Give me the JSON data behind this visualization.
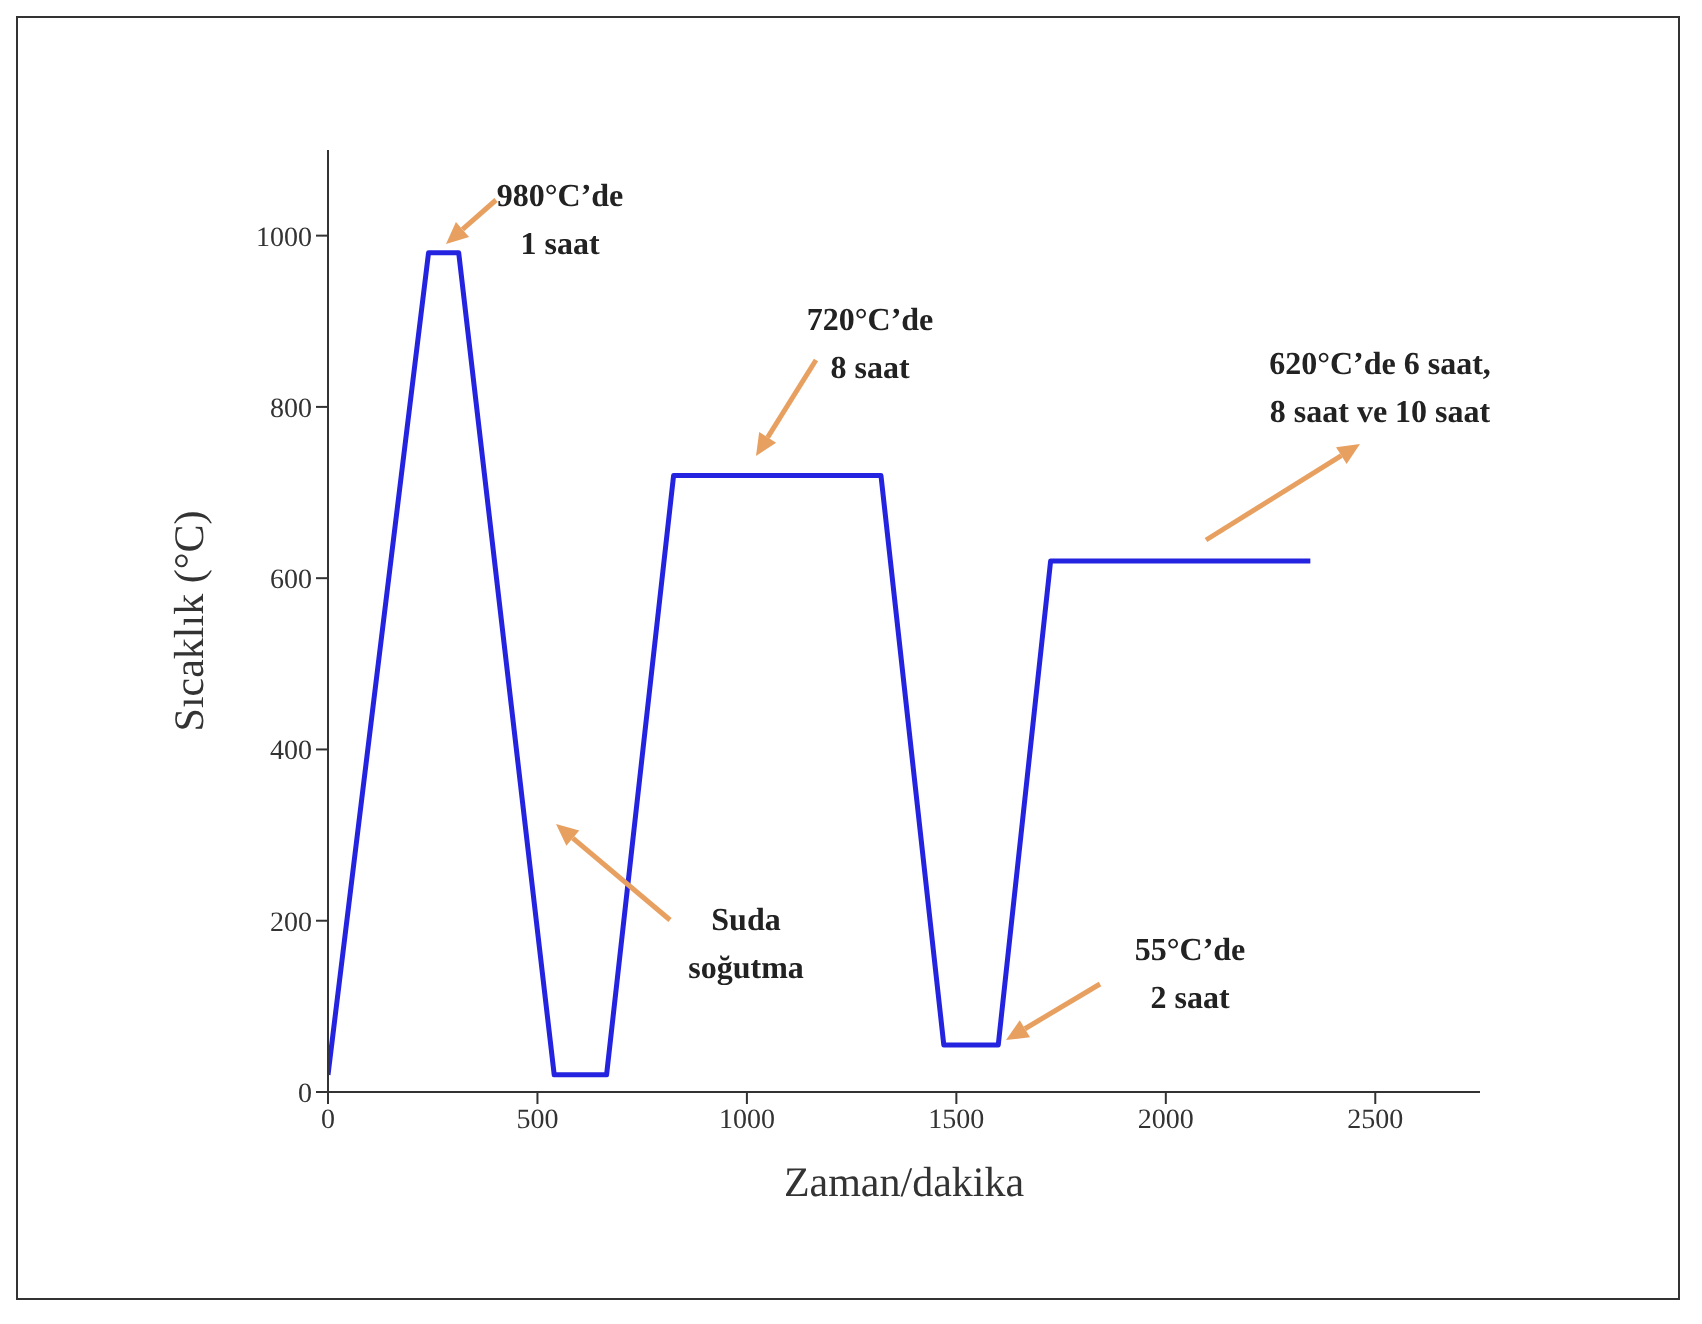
{
  "chart_data": {
    "type": "line",
    "xlabel": "Zaman/dakika",
    "ylabel": "Sıcaklık (°C)",
    "x": [
      0,
      240,
      312,
      540,
      665,
      825,
      1320,
      1470,
      1600,
      1725,
      2345
    ],
    "series": [
      {
        "color": "#2424e0",
        "values": [
          20,
          980,
          980,
          20,
          20,
          720,
          720,
          55,
          55,
          620,
          620
        ]
      }
    ],
    "xlim": [
      0,
      2750
    ],
    "xticks": [
      0,
      500,
      1000,
      1500,
      2000,
      2500
    ],
    "ylim": [
      0,
      1100
    ],
    "yticks": [
      0,
      200,
      400,
      600,
      800,
      1000
    ],
    "grid": false,
    "legend": false,
    "marker": "none",
    "line_style": "solid",
    "annotations": [
      "980°C’de\n1 saat",
      "720°C’de\n8 saat",
      "620°C’de 6 saat,\n8 saat ve 10 saat",
      "Suda\nsoğutma",
      "55°C’de\n2 saat"
    ]
  }
}
